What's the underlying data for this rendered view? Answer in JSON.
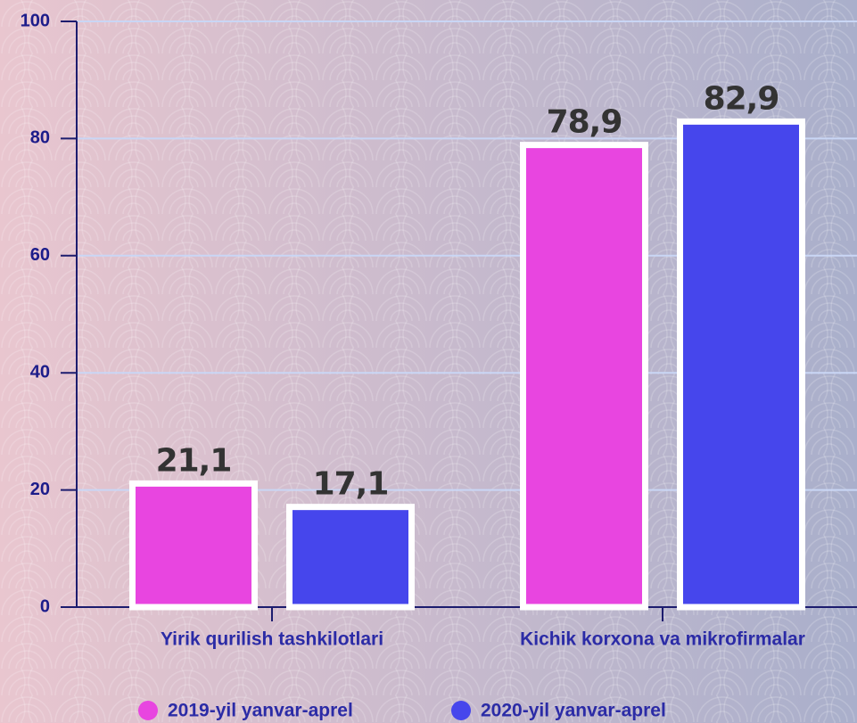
{
  "chart_data": {
    "type": "bar",
    "categories": [
      "Yirik qurilish tashkilotlari",
      "Kichik korxona va mikrofirmalar"
    ],
    "series": [
      {
        "name": "2019-yil yanvar-aprel",
        "color": "#e845e0",
        "values": [
          21.1,
          78.9
        ],
        "value_labels": [
          "21,1",
          "78,9"
        ]
      },
      {
        "name": "2020-yil yanvar-aprel",
        "color": "#4646ec",
        "values": [
          17.1,
          82.9
        ],
        "value_labels": [
          "17,1",
          "82,9"
        ]
      }
    ],
    "ylim": [
      0,
      100
    ],
    "yticks": [
      0,
      20,
      40,
      60,
      80,
      100
    ],
    "grid": true,
    "legend": "bottom"
  }
}
